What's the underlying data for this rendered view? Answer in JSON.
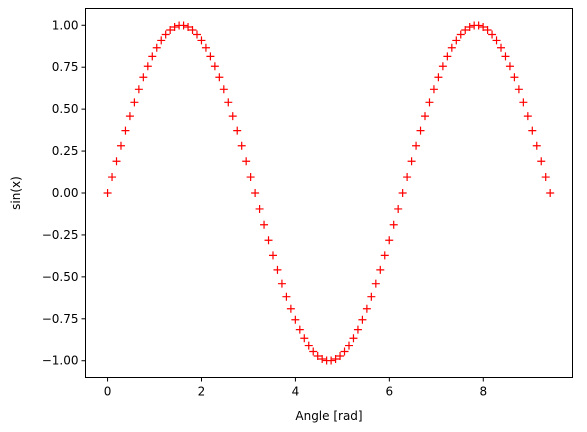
{
  "chart_data": {
    "type": "scatter",
    "title": "",
    "xlabel": "Angle [rad]",
    "ylabel": "sin(x)",
    "xlim": [
      -0.47,
      9.9
    ],
    "ylim": [
      -1.1,
      1.1
    ],
    "xticks": [
      0,
      2,
      4,
      6,
      8
    ],
    "xtick_labels": [
      "0",
      "2",
      "4",
      "6",
      "8"
    ],
    "yticks": [
      -1.0,
      -0.75,
      -0.5,
      -0.25,
      0.0,
      0.25,
      0.5,
      0.75,
      1.0
    ],
    "ytick_labels": [
      "−1.00",
      "−0.75",
      "−0.50",
      "−0.25",
      "0.00",
      "0.25",
      "0.50",
      "0.75",
      "1.00"
    ],
    "grid": false,
    "marker": "+",
    "marker_color": "#ff0000",
    "series": [
      {
        "x": [
          0.0,
          0.0952,
          0.1904,
          0.2856,
          0.3808,
          0.476,
          0.5712,
          0.6664,
          0.7616,
          0.8568,
          0.952,
          1.0472,
          1.1424,
          1.2376,
          1.3328,
          1.428,
          1.5232,
          1.6184,
          1.7136,
          1.8088,
          1.904,
          1.9992,
          2.0944,
          2.1896,
          2.2848,
          2.38,
          2.4752,
          2.5704,
          2.6656,
          2.7608,
          2.856,
          2.9512,
          3.0464,
          3.1416,
          3.2368,
          3.332,
          3.4272,
          3.5224,
          3.6176,
          3.7128,
          3.808,
          3.9032,
          3.9984,
          4.0936,
          4.1888,
          4.284,
          4.3792,
          4.4744,
          4.5696,
          4.6648,
          4.76,
          4.8552,
          4.9504,
          5.0456,
          5.1408,
          5.236,
          5.3312,
          5.4264,
          5.5216,
          5.6168,
          5.712,
          5.8072,
          5.9024,
          5.9976,
          6.0928,
          6.188,
          6.2832,
          6.3784,
          6.4736,
          6.5688,
          6.664,
          6.7592,
          6.8544,
          6.9496,
          7.0448,
          7.14,
          7.2352,
          7.3304,
          7.4256,
          7.5208,
          7.616,
          7.7112,
          7.8064,
          7.9016,
          7.9968,
          8.092,
          8.1872,
          8.2824,
          8.3776,
          8.4728,
          8.568,
          8.6632,
          8.7584,
          8.8536,
          8.9488,
          9.044,
          9.1392,
          9.2344,
          9.3296,
          9.4248
        ],
        "y": [
          0.0,
          0.0951,
          0.1893,
          0.2817,
          0.3717,
          0.4582,
          0.5406,
          0.6182,
          0.6901,
          0.7557,
          0.8146,
          0.866,
          0.9096,
          0.945,
          0.9718,
          0.9898,
          0.9989,
          0.9989,
          0.9898,
          0.9718,
          0.945,
          0.9096,
          0.866,
          0.8146,
          0.7557,
          0.6901,
          0.6182,
          0.5406,
          0.4582,
          0.3717,
          0.2817,
          0.1893,
          0.0951,
          0.0,
          -0.0951,
          -0.1893,
          -0.2817,
          -0.3717,
          -0.4582,
          -0.5406,
          -0.6182,
          -0.6901,
          -0.7557,
          -0.8146,
          -0.866,
          -0.9096,
          -0.945,
          -0.9718,
          -0.9898,
          -0.9989,
          -0.9989,
          -0.9898,
          -0.9718,
          -0.945,
          -0.9096,
          -0.866,
          -0.8146,
          -0.7557,
          -0.6901,
          -0.6182,
          -0.5406,
          -0.4582,
          -0.3717,
          -0.2817,
          -0.1893,
          -0.0951,
          0.0,
          0.0951,
          0.1893,
          0.2817,
          0.3717,
          0.4582,
          0.5406,
          0.6182,
          0.6901,
          0.7557,
          0.8146,
          0.866,
          0.9096,
          0.945,
          0.9718,
          0.9898,
          0.9989,
          0.9989,
          0.9898,
          0.9718,
          0.945,
          0.9096,
          0.866,
          0.8146,
          0.7557,
          0.6901,
          0.6182,
          0.5406,
          0.4582,
          0.3717,
          0.2817,
          0.1893,
          0.0951,
          0.0
        ]
      }
    ]
  }
}
